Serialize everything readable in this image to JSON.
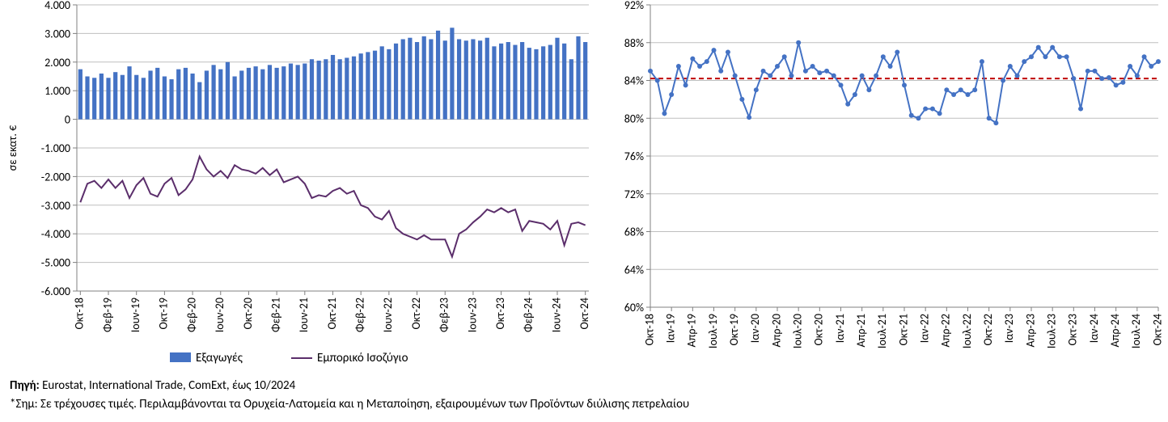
{
  "left_chart": {
    "type": "bar+line",
    "y_axis_title": "σε εκατ. €",
    "ylim": [
      -6000,
      4000
    ],
    "ytick_step": 1000,
    "y_tick_labels": [
      "-6.000",
      "-5.000",
      "-4.000",
      "-3.000",
      "-2.000",
      "-1.000",
      "0",
      "1.000",
      "2.000",
      "3.000",
      "4.000"
    ],
    "x_labels": [
      "Οκτ-18",
      "Φεβ-19",
      "Ιουν-19",
      "Οκτ-19",
      "Φεβ-20",
      "Ιουν-20",
      "Οκτ-20",
      "Φεβ-21",
      "Ιουν-21",
      "Οκτ-21",
      "Φεβ-22",
      "Ιουν-22",
      "Οκτ-22",
      "Φεβ-23",
      "Ιουν-23",
      "Οκτ-23",
      "Φεβ-24",
      "Ιουν-24",
      "Οκτ-24"
    ],
    "x_label_every": 4,
    "bar_color": "#4472c4",
    "line_color": "#5b2e6b",
    "grid_color": "#bfbfbf",
    "axis_color": "#808080",
    "background_color": "#ffffff",
    "bar_width": 0.6,
    "line_width": 2,
    "legend": {
      "bar": "Εξαγωγές",
      "line": "Εμπορικό Ισοζύγιο"
    },
    "bar_values": [
      1750,
      1500,
      1450,
      1600,
      1450,
      1650,
      1550,
      1850,
      1550,
      1450,
      1700,
      1800,
      1500,
      1400,
      1750,
      1800,
      1600,
      1300,
      1700,
      1900,
      1750,
      2000,
      1500,
      1700,
      1800,
      1850,
      1750,
      1900,
      1800,
      1850,
      1950,
      1900,
      1950,
      2100,
      2050,
      2100,
      2250,
      2100,
      2150,
      2200,
      2300,
      2350,
      2400,
      2550,
      2450,
      2650,
      2800,
      2850,
      2700,
      2900,
      2800,
      3100,
      2750,
      3200,
      2800,
      2750,
      2800,
      2750,
      2850,
      2550,
      2650,
      2700,
      2600,
      2700,
      2500,
      2450,
      2550,
      2600,
      2850,
      2650,
      2100,
      2900,
      2700
    ],
    "line_values": [
      -2900,
      -2250,
      -2150,
      -2400,
      -2100,
      -2400,
      -2150,
      -2750,
      -2300,
      -2050,
      -2600,
      -2700,
      -2250,
      -2050,
      -2650,
      -2450,
      -2100,
      -1300,
      -1750,
      -2000,
      -1800,
      -2050,
      -1600,
      -1750,
      -1800,
      -1900,
      -1700,
      -1950,
      -1750,
      -2200,
      -2100,
      -2000,
      -2250,
      -2750,
      -2650,
      -2700,
      -2500,
      -2400,
      -2600,
      -2500,
      -3000,
      -3100,
      -3400,
      -3500,
      -3200,
      -3800,
      -4000,
      -4100,
      -4200,
      -4050,
      -4200,
      -4200,
      -4200,
      -4800,
      -4000,
      -3850,
      -3600,
      -3400,
      -3150,
      -3250,
      -3100,
      -3250,
      -3150,
      -3900,
      -3550,
      -3600,
      -3650,
      -3850,
      -3550,
      -4400,
      -3650,
      -3600,
      -3700
    ]
  },
  "right_chart": {
    "type": "line",
    "ylim": [
      60,
      92
    ],
    "ytick_step": 4,
    "y_tick_labels": [
      "60%",
      "64%",
      "68%",
      "72%",
      "76%",
      "80%",
      "84%",
      "88%",
      "92%"
    ],
    "x_labels": [
      "Οκτ-18",
      "Ιαν-19",
      "Απρ-19",
      "Ιουλ-19",
      "Οκτ-19",
      "Ιαν-20",
      "Απρ-20",
      "Ιουλ-20",
      "Οκτ-20",
      "Ιαν-21",
      "Απρ-21",
      "Ιουλ-21",
      "Οκτ-21",
      "Ιαν-22",
      "Απρ-22",
      "Ιουλ-22",
      "Οκτ-22",
      "Ιαν-23",
      "Απρ-23",
      "Ιουλ-23",
      "Οκτ-23",
      "Ιαν-24",
      "Απρ-24",
      "Ιουλ-24",
      "Οκτ-24"
    ],
    "x_label_every": 3,
    "line_color": "#4472c4",
    "ref_line_color": "#c00000",
    "grid_color": "#bfbfbf",
    "axis_color": "#808080",
    "background_color": "#ffffff",
    "marker_size": 3,
    "line_width": 2,
    "ref_line_value": 84.2,
    "ref_line_dash": "6,4",
    "values": [
      85.0,
      84.0,
      80.5,
      82.5,
      85.5,
      83.5,
      86.3,
      85.5,
      86.0,
      87.2,
      85.0,
      87.0,
      84.5,
      82.0,
      80.1,
      83.0,
      85.0,
      84.5,
      85.5,
      86.5,
      84.5,
      88.0,
      85.0,
      85.5,
      84.8,
      85.0,
      84.5,
      83.5,
      81.5,
      82.5,
      84.5,
      83.0,
      84.5,
      86.5,
      85.5,
      87.0,
      83.5,
      80.3,
      80.0,
      81.0,
      81.0,
      80.5,
      83.0,
      82.5,
      83.0,
      82.5,
      83.0,
      86.0,
      80.0,
      79.5,
      84.0,
      85.5,
      84.5,
      86.0,
      86.5,
      87.5,
      86.5,
      87.5,
      86.5,
      86.5,
      84.2,
      81.0,
      85.0,
      85.0,
      84.2,
      84.3,
      83.5,
      83.8,
      85.5,
      84.5,
      86.5,
      85.5,
      86.0
    ]
  },
  "notes": {
    "source_label": "Πηγή:",
    "source_text": "Eurostat, International Trade, ComExt, έως 10/2024",
    "footnote": "*Σημ: Σε τρέχουσες τιμές. Περιλαμβάνονται τα Ορυχεία-Λατομεία και η Μεταποίηση, εξαιρουμένων των Προϊόντων διύλισης πετρελαίου"
  }
}
